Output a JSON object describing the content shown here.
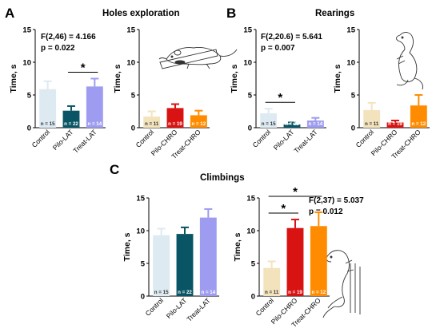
{
  "panels": [
    {
      "letter": "A",
      "title": "Holes exploration"
    },
    {
      "letter": "B",
      "title": "Rearings"
    },
    {
      "letter": "C",
      "title": "Climbings"
    }
  ],
  "colors": {
    "Control": "#ddeaf2",
    "Pilo-LAT": "#0a5565",
    "Treat-LAT": "#9e9cf0",
    "Control-CHRO": "#f3e3bd",
    "Pilo-CHRO": "#d91212",
    "Treat-CHRO": "#ff8c00"
  },
  "chart_data": [
    {
      "type": "bar",
      "panel": "A",
      "ylabel": "Time, s",
      "ylim": [
        0,
        15
      ],
      "yticks": [
        "0",
        "5",
        "10",
        "15"
      ],
      "categories": [
        "Control",
        "Pilo-LAT",
        "Treat-LAT"
      ],
      "values": [
        5.9,
        2.6,
        6.3
      ],
      "errors": [
        1.2,
        0.7,
        1.2
      ],
      "n_labels": [
        "n = 15",
        "n = 22",
        "n = 14"
      ],
      "stat_line1": "F(2,46) = 4.166",
      "stat_line2": "p = 0.022",
      "significance": [
        {
          "from": 1,
          "to": 2,
          "label": "*"
        }
      ]
    },
    {
      "type": "bar",
      "panel": "A",
      "ylabel": "Time, s",
      "ylim": [
        0,
        15
      ],
      "yticks": [
        "0",
        "5",
        "10",
        "15"
      ],
      "categories": [
        "Control",
        "Pilo-CHRO",
        "Treat-CHRO"
      ],
      "values": [
        1.7,
        3.0,
        1.9
      ],
      "errors": [
        0.8,
        0.6,
        0.7
      ],
      "n_labels": [
        "n = 11",
        "n = 19",
        "n = 12"
      ],
      "significance": []
    },
    {
      "type": "bar",
      "panel": "B",
      "ylabel": "Time, s",
      "ylim": [
        0,
        15
      ],
      "yticks": [
        "0",
        "5",
        "10",
        "15"
      ],
      "categories": [
        "Control",
        "Pilo-LAT",
        "Treat-LAT"
      ],
      "values": [
        2.2,
        0.5,
        1.1
      ],
      "errors": [
        0.7,
        0.3,
        0.4
      ],
      "n_labels": [
        "n = 15",
        "n = 22",
        "n = 14"
      ],
      "stat_line1": "F(2,20.6) = 5.641",
      "stat_line2": "p = 0.007",
      "significance": [
        {
          "from": 0,
          "to": 1,
          "label": "*"
        }
      ]
    },
    {
      "type": "bar",
      "panel": "B",
      "ylabel": "Time, s",
      "ylim": [
        0,
        15
      ],
      "yticks": [
        "0",
        "5",
        "10",
        "15"
      ],
      "categories": [
        "Control",
        "Pilo-CHRO",
        "Treat-CHRO"
      ],
      "values": [
        2.7,
        0.8,
        3.4
      ],
      "errors": [
        1.1,
        0.3,
        1.6
      ],
      "n_labels": [
        "n = 11",
        "n = 19",
        "n = 12"
      ],
      "significance": []
    },
    {
      "type": "bar",
      "panel": "C",
      "ylabel": "Time, s",
      "ylim": [
        0,
        15
      ],
      "yticks": [
        "0",
        "5",
        "10",
        "15"
      ],
      "categories": [
        "Control",
        "Pilo-LAT",
        "Treat-LAT"
      ],
      "values": [
        9.3,
        9.5,
        12.0
      ],
      "errors": [
        1.0,
        1.0,
        1.3
      ],
      "n_labels": [
        "n = 15",
        "n = 22",
        "n = 14"
      ],
      "significance": []
    },
    {
      "type": "bar",
      "panel": "C",
      "ylabel": "Time, s",
      "ylim": [
        0,
        15
      ],
      "yticks": [
        "0",
        "5",
        "10",
        "15"
      ],
      "categories": [
        "Control",
        "Pilo-CHRO",
        "Treat-CHRO"
      ],
      "values": [
        4.3,
        10.4,
        10.7
      ],
      "errors": [
        1.0,
        1.3,
        2.1
      ],
      "n_labels": [
        "n = 11",
        "n = 19",
        "n = 12"
      ],
      "stat_line1": "F(2,37) = 5.037",
      "stat_line2": "p = 0.012",
      "significance": [
        {
          "from": 0,
          "to": 1,
          "label": "*"
        },
        {
          "from": 0,
          "to": 2,
          "label": "*"
        }
      ]
    }
  ]
}
